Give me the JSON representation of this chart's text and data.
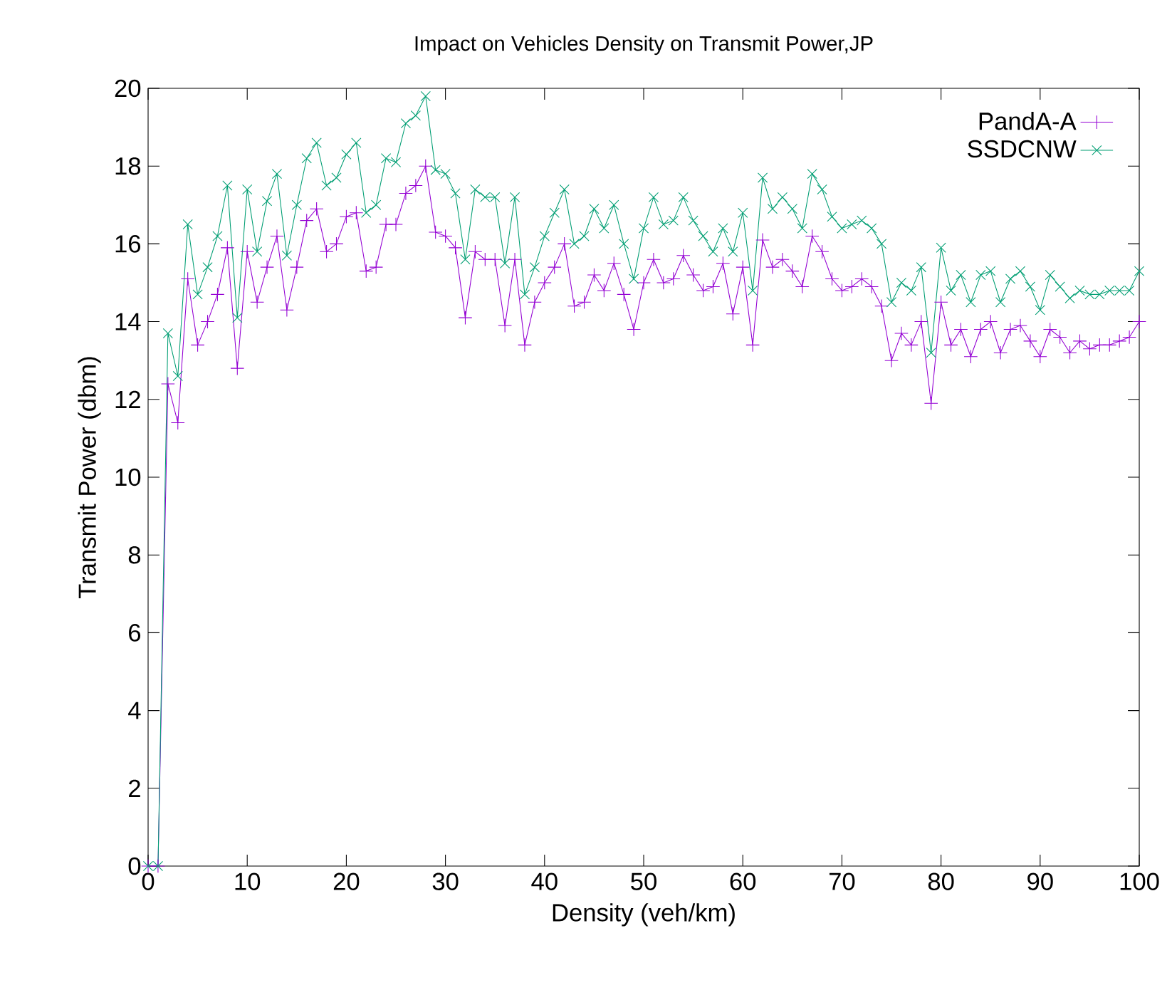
{
  "chart_data": {
    "type": "line",
    "title": "Impact on Vehicles Density on Transmit Power,JP",
    "xlabel": "Density (veh/km)",
    "ylabel": "Transmit Power (dbm)",
    "x": [
      0,
      1,
      2,
      3,
      4,
      5,
      6,
      7,
      8,
      9,
      10,
      11,
      12,
      13,
      14,
      15,
      16,
      17,
      18,
      19,
      20,
      21,
      22,
      23,
      24,
      25,
      26,
      27,
      28,
      29,
      30,
      31,
      32,
      33,
      34,
      35,
      36,
      37,
      38,
      39,
      40,
      41,
      42,
      43,
      44,
      45,
      46,
      47,
      48,
      49,
      50,
      51,
      52,
      53,
      54,
      55,
      56,
      57,
      58,
      59,
      60,
      61,
      62,
      63,
      64,
      65,
      66,
      67,
      68,
      69,
      70,
      71,
      72,
      73,
      74,
      75,
      76,
      77,
      78,
      79,
      80,
      81,
      82,
      83,
      84,
      85,
      86,
      87,
      88,
      89,
      90,
      91,
      92,
      93,
      94,
      95,
      96,
      97,
      98,
      99,
      100
    ],
    "series": [
      {
        "name": "PandA-A",
        "color": "#9400d3",
        "marker": "plus",
        "values": [
          0,
          0,
          12.4,
          11.4,
          15.1,
          13.4,
          14.0,
          14.7,
          15.9,
          12.8,
          15.8,
          14.5,
          15.4,
          16.2,
          14.3,
          15.4,
          16.6,
          16.9,
          15.8,
          16.0,
          16.7,
          16.8,
          15.3,
          15.4,
          16.5,
          16.5,
          17.3,
          17.5,
          18.0,
          16.3,
          16.2,
          15.9,
          14.1,
          15.8,
          15.6,
          15.6,
          13.9,
          15.6,
          13.4,
          14.5,
          15.0,
          15.4,
          16.0,
          14.4,
          14.5,
          15.2,
          14.8,
          15.5,
          14.7,
          13.8,
          15.0,
          15.6,
          15.0,
          15.1,
          15.7,
          15.2,
          14.8,
          14.9,
          15.5,
          14.2,
          15.4,
          13.4,
          16.1,
          15.4,
          15.6,
          15.3,
          14.9,
          16.2,
          15.8,
          15.1,
          14.8,
          14.9,
          15.1,
          14.9,
          14.4,
          13.0,
          13.7,
          13.4,
          14.0,
          11.9,
          14.5,
          13.4,
          13.8,
          13.1,
          13.8,
          14.0,
          13.2,
          13.8,
          13.9,
          13.5,
          13.1,
          13.8,
          13.6,
          13.2,
          13.5,
          13.3,
          13.4,
          13.4,
          13.5,
          13.6,
          14.0
        ]
      },
      {
        "name": "SSDCNW",
        "color": "#009e73",
        "marker": "cross",
        "values": [
          0,
          0,
          13.7,
          12.6,
          16.5,
          14.7,
          15.4,
          16.2,
          17.5,
          14.1,
          17.4,
          15.8,
          17.1,
          17.8,
          15.7,
          17.0,
          18.2,
          18.6,
          17.5,
          17.7,
          18.3,
          18.6,
          16.8,
          17.0,
          18.2,
          18.1,
          19.1,
          19.3,
          19.8,
          17.9,
          17.8,
          17.3,
          15.6,
          17.4,
          17.2,
          17.2,
          15.5,
          17.2,
          14.7,
          15.4,
          16.2,
          16.8,
          17.4,
          16.0,
          16.2,
          16.9,
          16.4,
          17.0,
          16.0,
          15.1,
          16.4,
          17.2,
          16.5,
          16.6,
          17.2,
          16.6,
          16.2,
          15.8,
          16.4,
          15.8,
          16.8,
          14.8,
          17.7,
          16.9,
          17.2,
          16.9,
          16.4,
          17.8,
          17.4,
          16.7,
          16.4,
          16.5,
          16.6,
          16.4,
          16.0,
          14.5,
          15.0,
          14.8,
          15.4,
          13.2,
          15.9,
          14.8,
          15.2,
          14.5,
          15.2,
          15.3,
          14.5,
          15.1,
          15.3,
          14.9,
          14.3,
          15.2,
          14.9,
          14.6,
          14.8,
          14.7,
          14.7,
          14.8,
          14.8,
          14.8,
          15.3
        ]
      }
    ],
    "xlim": [
      0,
      100
    ],
    "xticks": [
      0,
      10,
      20,
      30,
      40,
      50,
      60,
      70,
      80,
      90,
      100
    ],
    "ylim": [
      0,
      20
    ],
    "yticks": [
      0,
      2,
      4,
      6,
      8,
      10,
      12,
      14,
      16,
      18,
      20
    ],
    "grid": false,
    "legend": "top right",
    "line_style": "solid"
  }
}
